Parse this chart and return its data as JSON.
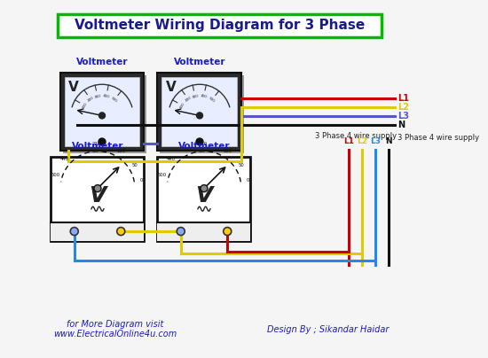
{
  "title": "Voltmeter Wiring Diagram for 3 Phase",
  "title_color": "#1a1a8c",
  "title_box_color": "#00bb00",
  "bg_color": "#f5f5f5",
  "wire_colors": {
    "L1": "#cc0000",
    "L2": "#ddcc00",
    "L3": "#5555cc",
    "N": "#111111",
    "blue": "#2288ee"
  },
  "labels": {
    "L1": "L1",
    "L2": "L2",
    "L3": "L3",
    "N": "N",
    "supply1": "3 Phase 4 wire supply",
    "supply2": "3 Phase 4 wire supply",
    "L1L2L3": "L1 L2L3",
    "voltmeter": "Voltmeter",
    "footer_left": "for More Diagram visit",
    "footer_url": "www.ElectricalOnline4u.com",
    "footer_right": "Design By ; Sikandar Haidar"
  },
  "label_color": "#1a1acc",
  "footer_color": "#1a1acc"
}
